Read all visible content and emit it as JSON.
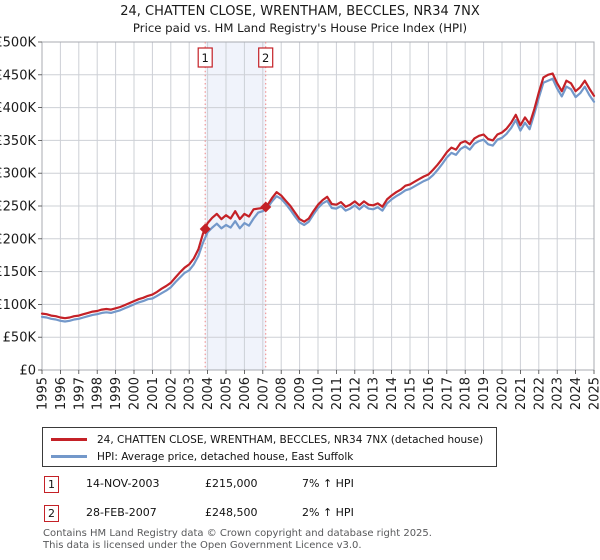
{
  "title": {
    "line1": "24, CHATTEN CLOSE, WRENTHAM, BECCLES, NR34 7NX",
    "line2": "Price paid vs. HM Land Registry's House Price Index (HPI)"
  },
  "colors": {
    "property_line": "#c42127",
    "hpi_line": "#7398ca",
    "band": "#f0f3fb",
    "grid": "#cdd0d6",
    "spine": "#a8abb2",
    "tick": "#444444",
    "dashed_sale_line": "#f08f8f",
    "flag_border": "#c42127",
    "axis_text": "#1a1a1a",
    "footer_text": "#58595b"
  },
  "chart_data": {
    "type": "line",
    "title": "24, CHATTEN CLOSE, WRENTHAM, BECCLES, NR34 7NX — Price paid vs. HPI",
    "xlabel": "Year",
    "ylabel": "Price (GBP)",
    "xlim": [
      1995,
      2025
    ],
    "ylim": [
      0,
      500
    ],
    "grid": true,
    "legend_position": "below",
    "x_ticks": [
      1995,
      1996,
      1997,
      1998,
      1999,
      2000,
      2001,
      2002,
      2003,
      2004,
      2005,
      2006,
      2007,
      2008,
      2009,
      2010,
      2011,
      2012,
      2013,
      2014,
      2015,
      2016,
      2017,
      2018,
      2019,
      2020,
      2021,
      2022,
      2023,
      2024,
      2025
    ],
    "y_ticks": [
      {
        "value": 0,
        "label": "£0"
      },
      {
        "value": 50,
        "label": "£50K"
      },
      {
        "value": 100,
        "label": "£100K"
      },
      {
        "value": 150,
        "label": "£150K"
      },
      {
        "value": 200,
        "label": "£200K"
      },
      {
        "value": 250,
        "label": "£250K"
      },
      {
        "value": 300,
        "label": "£300K"
      },
      {
        "value": 350,
        "label": "£350K"
      },
      {
        "value": 400,
        "label": "£400K"
      },
      {
        "value": 450,
        "label": "£450K"
      },
      {
        "value": 500,
        "label": "£500K"
      }
    ],
    "x_start": 1995.0,
    "x_step": 0.25,
    "value_unit": "GBP thousands",
    "series": [
      {
        "name": "24, CHATTEN CLOSE, WRENTHAM, BECCLES, NR34 7NX (detached house)",
        "color": "#c42127",
        "values": [
          86,
          85,
          83,
          82,
          80,
          79,
          80,
          82,
          83,
          85,
          87,
          89,
          90,
          92,
          93,
          92,
          94,
          96,
          99,
          102,
          105,
          108,
          110,
          113,
          115,
          119,
          124,
          128,
          133,
          141,
          149,
          156,
          161,
          170,
          184,
          208,
          224,
          232,
          238,
          230,
          236,
          231,
          242,
          230,
          238,
          234,
          245,
          246,
          247,
          251,
          262,
          271,
          266,
          258,
          250,
          240,
          230,
          226,
          231,
          242,
          252,
          259,
          264,
          253,
          252,
          256,
          249,
          252,
          257,
          251,
          257,
          252,
          251,
          254,
          249,
          260,
          266,
          271,
          275,
          281,
          283,
          287,
          291,
          295,
          298,
          305,
          313,
          322,
          332,
          339,
          336,
          346,
          349,
          344,
          353,
          357,
          359,
          352,
          350,
          359,
          362,
          368,
          377,
          389,
          373,
          385,
          375,
          397,
          423,
          446,
          450,
          452,
          437,
          425,
          441,
          437,
          425,
          431,
          441,
          429,
          418
        ]
      },
      {
        "name": "HPI: Average price, detached house, East Suffolk",
        "color": "#7398ca",
        "values": [
          81,
          80,
          78,
          77,
          75,
          74,
          75,
          77,
          78,
          80,
          82,
          84,
          85,
          87,
          88,
          87,
          89,
          91,
          94,
          97,
          100,
          103,
          105,
          108,
          109,
          113,
          117,
          121,
          126,
          134,
          141,
          148,
          152,
          161,
          174,
          194,
          210,
          217,
          223,
          216,
          221,
          217,
          227,
          216,
          224,
          220,
          231,
          240,
          242,
          247,
          257,
          265,
          261,
          253,
          244,
          234,
          225,
          221,
          226,
          237,
          247,
          254,
          258,
          247,
          246,
          250,
          243,
          246,
          251,
          245,
          251,
          246,
          245,
          248,
          243,
          254,
          260,
          265,
          269,
          274,
          276,
          280,
          284,
          288,
          291,
          297,
          305,
          314,
          324,
          331,
          328,
          337,
          341,
          336,
          345,
          349,
          351,
          344,
          342,
          351,
          354,
          360,
          369,
          381,
          365,
          377,
          367,
          390,
          415,
          438,
          441,
          444,
          429,
          417,
          432,
          428,
          416,
          422,
          432,
          419,
          409
        ]
      }
    ],
    "markers": [
      {
        "label": "1",
        "x": 2003.87,
        "value": 215,
        "price_gbp": 215000,
        "date": "14-NOV-2003"
      },
      {
        "label": "2",
        "x": 2007.16,
        "value": 248.5,
        "price_gbp": 248500,
        "date": "28-FEB-2007"
      }
    ],
    "shaded_band": {
      "from_x": 2003.87,
      "to_x": 2007.16
    }
  },
  "legend": {
    "items": [
      {
        "label": "24, CHATTEN CLOSE, WRENTHAM, BECCLES, NR34 7NX (detached house)",
        "color": "#c42127"
      },
      {
        "label": "HPI: Average price, detached house, East Suffolk",
        "color": "#7398ca"
      }
    ]
  },
  "transactions": [
    {
      "n": "1",
      "date": "14-NOV-2003",
      "price": "£215,000",
      "hpi": "7% ↑ HPI"
    },
    {
      "n": "2",
      "date": "28-FEB-2007",
      "price": "£248,500",
      "hpi": "2% ↑ HPI"
    }
  ],
  "footer": {
    "line1": "Contains HM Land Registry data © Crown copyright and database right 2025.",
    "line2": "This data is licensed under the Open Government Licence v3.0."
  }
}
